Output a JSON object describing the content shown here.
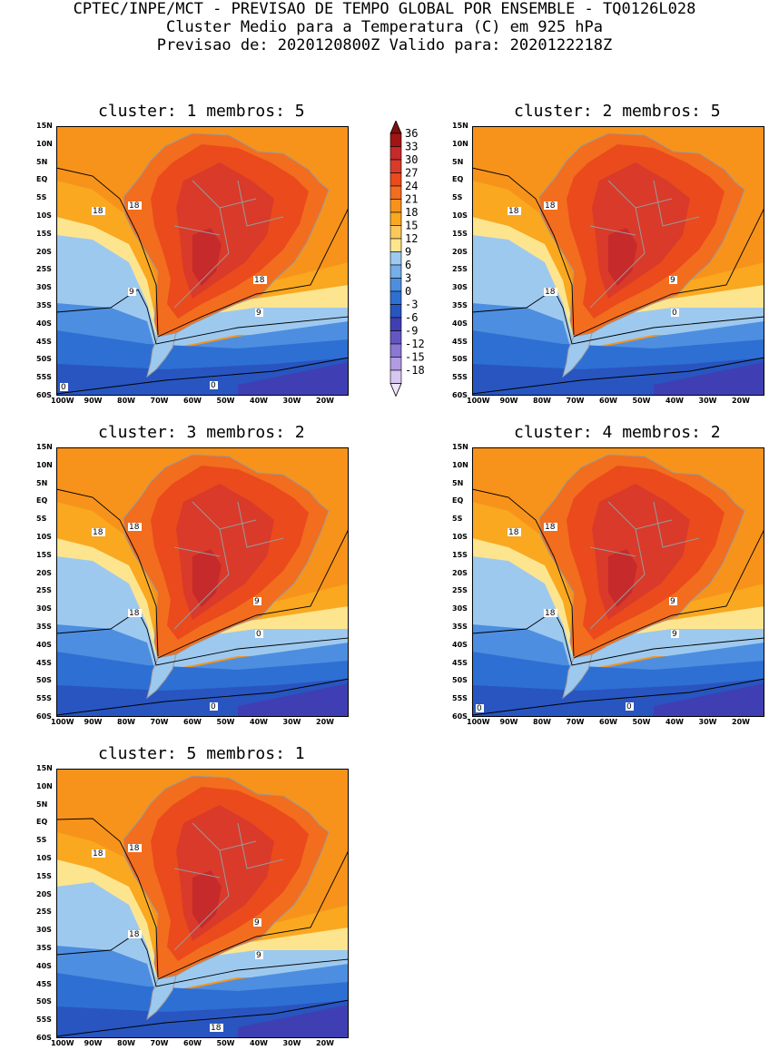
{
  "header": {
    "line1": "CPTEC/INPE/MCT - PREVISAO DE TEMPO GLOBAL POR ENSEMBLE - TQ0126L028",
    "line2": "Cluster Medio para a Temperatura (C) em 925 hPa",
    "line3": "Previsao de: 2020120800Z   Valido para: 2020122218Z"
  },
  "panel_labels": [
    "cluster: 1  membros: 5",
    "cluster: 2  membros: 5",
    "cluster: 3  membros: 2",
    "cluster: 4  membros: 2",
    "cluster: 5  membros: 1"
  ],
  "lat_ticks": [
    "15N",
    "10N",
    "5N",
    "EQ",
    "5S",
    "10S",
    "15S",
    "20S",
    "25S",
    "30S",
    "35S",
    "40S",
    "45S",
    "50S",
    "55S",
    "60S"
  ],
  "lon_ticks": [
    "100W",
    "90W",
    "80W",
    "70W",
    "60W",
    "50W",
    "40W",
    "30W",
    "20W"
  ],
  "colorbar": {
    "levels": [
      "36",
      "33",
      "30",
      "27",
      "24",
      "21",
      "18",
      "15",
      "12",
      "9",
      "6",
      "3",
      "0",
      "-3",
      "-6",
      "-9",
      "-12",
      "-15",
      "-18"
    ],
    "colors": [
      "#a31414",
      "#c62a2a",
      "#d93a2a",
      "#ea4a1c",
      "#f26d1e",
      "#f7931a",
      "#f9a820",
      "#fbc95a",
      "#fde58f",
      "#9ec9ef",
      "#75aee8",
      "#4d8ee0",
      "#2e6fd3",
      "#2855c0",
      "#3f3fb3",
      "#6456c2",
      "#8a78d4",
      "#b19be2",
      "#d6c6f0"
    ],
    "under_color": "#ece4f8",
    "over_color": "#7d0f0f"
  },
  "panels": [
    {
      "contour_labels": [
        "18",
        "18",
        "9",
        "18",
        "9",
        "0",
        "0"
      ]
    },
    {
      "contour_labels": [
        "18",
        "18",
        "18",
        "9",
        "0"
      ]
    },
    {
      "contour_labels": [
        "18",
        "18",
        "18",
        "9",
        "0",
        "0"
      ]
    },
    {
      "contour_labels": [
        "18",
        "18",
        "18",
        "9",
        "9",
        "0",
        "0"
      ]
    },
    {
      "contour_labels": [
        "18",
        "18",
        "18",
        "9",
        "9",
        "18"
      ]
    }
  ],
  "map_colors": {
    "orange": "#f7931a",
    "light_orange": "#f9a820",
    "yellow": "#fde58f",
    "lightblue": "#9ec9ef",
    "blue": "#4d8ee0",
    "darkblue": "#2e6fd3",
    "navy": "#2855c0",
    "purple": "#3f3fb3",
    "hot1": "#f26d1e",
    "hot2": "#ea4a1c",
    "hot3": "#d93a2a",
    "hot4": "#c62a2a",
    "land_border": "#9a9a9a"
  }
}
